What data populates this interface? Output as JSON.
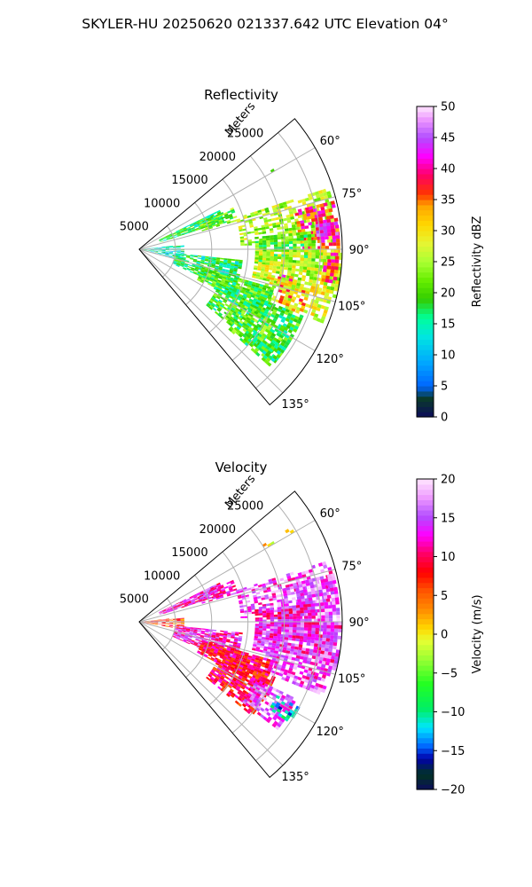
{
  "suptitle": "SKYLER-HU  20250620  021337.642 UTC Elevation 04°",
  "chart_data": [
    {
      "type": "polar-sector-heatmap",
      "title": "Reflectivity",
      "range_label": "Meters",
      "range_ticks": [
        5000,
        10000,
        15000,
        20000,
        25000
      ],
      "range_tick_labels": [
        "5000",
        "10000",
        "15000",
        "20000",
        "25000"
      ],
      "range_max": 28000,
      "azimuth_range_deg": [
        50,
        140
      ],
      "azimuth_ticks": [
        60,
        75,
        90,
        105,
        120,
        135
      ],
      "azimuth_tick_labels": [
        "60°",
        "75°",
        "90°",
        "105°",
        "120°",
        "135°"
      ],
      "grid": true,
      "colorbar": {
        "label": "Reflectivity dBZ",
        "range": [
          0,
          50
        ],
        "ticks": [
          "0",
          "5",
          "10",
          "15",
          "20",
          "25",
          "30",
          "35",
          "40",
          "45",
          "50"
        ]
      },
      "echo_regions": [
        {
          "az": [
            58,
            60
          ],
          "r": [
            19000,
            27000
          ],
          "value": 20,
          "fill": 0.15
        },
        {
          "az": [
            64,
            72
          ],
          "r": [
            3000,
            12000
          ],
          "value": 18,
          "fill": 0.85
        },
        {
          "az": [
            66,
            74
          ],
          "r": [
            9000,
            14000
          ],
          "value": 22,
          "fill": 0.7
        },
        {
          "az": [
            72,
            88
          ],
          "r": [
            14000,
            27500
          ],
          "value": 25,
          "fill": 0.55
        },
        {
          "az": [
            76,
            92
          ],
          "r": [
            22000,
            27500
          ],
          "value": 38,
          "fill": 0.6
        },
        {
          "az": [
            82,
            86
          ],
          "r": [
            24500,
            27500
          ],
          "value": 42,
          "fill": 0.9
        },
        {
          "az": [
            84,
            96
          ],
          "r": [
            16000,
            24000
          ],
          "value": 21,
          "fill": 0.75
        },
        {
          "az": [
            90,
            104
          ],
          "r": [
            16000,
            27500
          ],
          "value": 26,
          "fill": 0.8
        },
        {
          "az": [
            100,
            104
          ],
          "r": [
            19500,
            21500
          ],
          "value": 38,
          "fill": 0.6
        },
        {
          "az": [
            92,
            100
          ],
          "r": [
            25500,
            27500
          ],
          "value": 36,
          "fill": 0.7
        },
        {
          "az": [
            102,
            112
          ],
          "r": [
            18000,
            27000
          ],
          "value": 28,
          "fill": 0.7
        },
        {
          "az": [
            104,
            112
          ],
          "r": [
            20000,
            24000
          ],
          "value": 33,
          "fill": 0.5
        },
        {
          "az": [
            84,
            104
          ],
          "r": [
            0,
            6000
          ],
          "value": 14,
          "fill": 0.55
        },
        {
          "az": [
            96,
            114
          ],
          "r": [
            5000,
            14000
          ],
          "value": 17,
          "fill": 0.8
        },
        {
          "az": [
            106,
            118
          ],
          "r": [
            9000,
            19000
          ],
          "value": 20,
          "fill": 0.85
        },
        {
          "az": [
            112,
            130
          ],
          "r": [
            12000,
            24000
          ],
          "value": 19,
          "fill": 0.75
        },
        {
          "az": [
            118,
            132
          ],
          "r": [
            16000,
            23000
          ],
          "value": 21,
          "fill": 0.6
        },
        {
          "az": [
            126,
            132
          ],
          "r": [
            19000,
            24000
          ],
          "value": 18,
          "fill": 0.5
        }
      ]
    },
    {
      "type": "polar-sector-heatmap",
      "title": "Velocity",
      "range_label": "Meters",
      "range_ticks": [
        5000,
        10000,
        15000,
        20000,
        25000
      ],
      "range_tick_labels": [
        "5000",
        "10000",
        "15000",
        "20000",
        "25000"
      ],
      "range_max": 28000,
      "azimuth_range_deg": [
        50,
        140
      ],
      "azimuth_ticks": [
        60,
        75,
        90,
        105,
        120,
        135
      ],
      "azimuth_tick_labels": [
        "60°",
        "75°",
        "90°",
        "105°",
        "120°",
        "135°"
      ],
      "grid": true,
      "colorbar": {
        "label": "Velocity (m/s)",
        "range": [
          -20,
          20
        ],
        "ticks": [
          "−20",
          "−15",
          "−10",
          "−5",
          "0",
          "5",
          "10",
          "15",
          "20"
        ]
      },
      "echo_regions": [
        {
          "az": [
            58,
            60
          ],
          "r": [
            19000,
            27000
          ],
          "value": 2,
          "fill": 0.2
        },
        {
          "az": [
            64,
            72
          ],
          "r": [
            3000,
            12000
          ],
          "value": 13,
          "fill": 0.85
        },
        {
          "az": [
            66,
            74
          ],
          "r": [
            9000,
            14000
          ],
          "value": 13,
          "fill": 0.75
        },
        {
          "az": [
            72,
            88
          ],
          "r": [
            14000,
            27500
          ],
          "value": 15,
          "fill": 0.55
        },
        {
          "az": [
            76,
            92
          ],
          "r": [
            22000,
            27500
          ],
          "value": 16,
          "fill": 0.7
        },
        {
          "az": [
            84,
            96
          ],
          "r": [
            16000,
            24000
          ],
          "value": 13,
          "fill": 0.8
        },
        {
          "az": [
            90,
            104
          ],
          "r": [
            16000,
            27500
          ],
          "value": 14,
          "fill": 0.85
        },
        {
          "az": [
            102,
            112
          ],
          "r": [
            18000,
            27000
          ],
          "value": 15,
          "fill": 0.7
        },
        {
          "az": [
            84,
            100
          ],
          "r": [
            0,
            6000
          ],
          "value": 6,
          "fill": 0.55
        },
        {
          "az": [
            96,
            114
          ],
          "r": [
            5000,
            14000
          ],
          "value": 13,
          "fill": 0.8
        },
        {
          "az": [
            106,
            118
          ],
          "r": [
            9000,
            19000
          ],
          "value": 9,
          "fill": 0.85
        },
        {
          "az": [
            112,
            130
          ],
          "r": [
            12000,
            20000
          ],
          "value": 9,
          "fill": 0.75
        },
        {
          "az": [
            116,
            128
          ],
          "r": [
            18000,
            24000
          ],
          "value": 15,
          "fill": 0.6
        },
        {
          "az": [
            118,
            124
          ],
          "r": [
            21500,
            25000
          ],
          "value": -12,
          "fill": 0.55
        }
      ]
    }
  ]
}
